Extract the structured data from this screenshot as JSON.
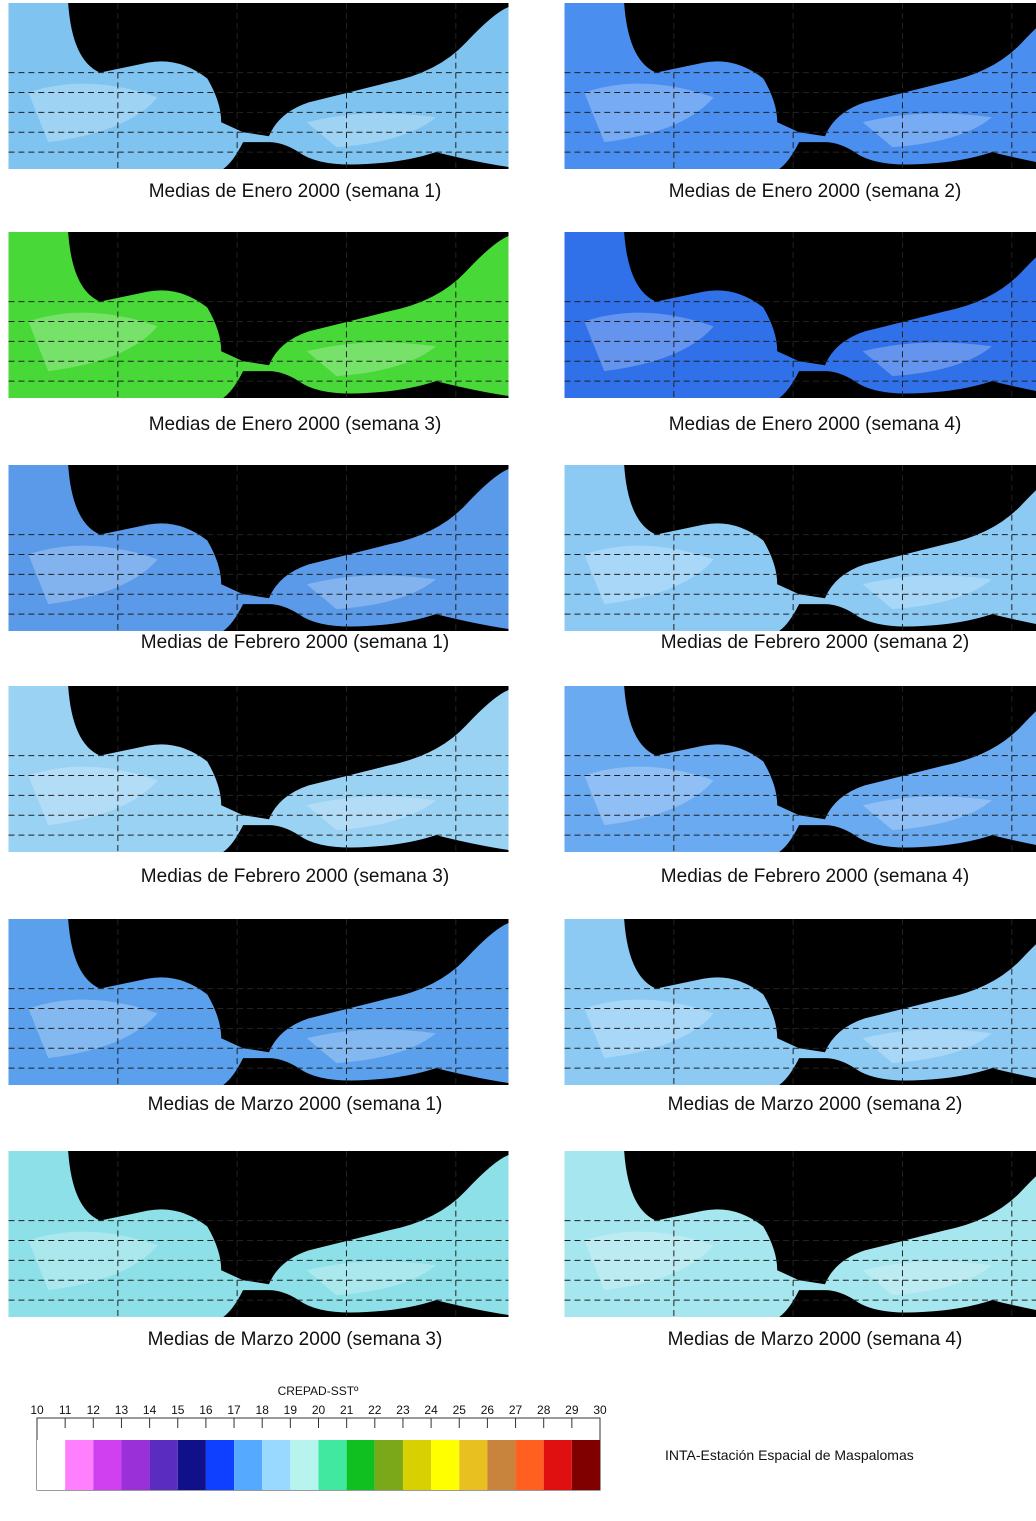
{
  "captions": [
    "Medias de Enero 2000 (semana 1)",
    "Medias de Enero 2000 (semana 2)",
    "Medias de Enero 2000 (semana 3)",
    "Medias de Enero 2000 (semana 4)",
    "Medias de Febrero 2000 (semana 1)",
    "Medias de Febrero 2000 (semana 2)",
    "Medias de Febrero 2000 (semana 3)",
    "Medias de Febrero 2000 (semana 4)",
    "Medias de Marzo 2000 (semana 1)",
    "Medias de Marzo 2000 (semana 2)",
    "Medias de Marzo 2000 (semana 3)",
    "Medias de Marzo 2000 (semana 4)"
  ],
  "legend": {
    "title": "CREPAD-SSTº",
    "ticks": [
      10,
      11,
      12,
      13,
      14,
      15,
      16,
      17,
      18,
      19,
      20,
      21,
      22,
      23,
      24,
      25,
      26,
      27,
      28,
      29,
      30
    ],
    "colors": [
      "#ffffff",
      "#ff7fff",
      "#d040f0",
      "#9a30d8",
      "#5a2cc0",
      "#10108a",
      "#1040ff",
      "#55aaff",
      "#99d8ff",
      "#b8f4ee",
      "#40e8a0",
      "#10c020",
      "#7aa818",
      "#d8d000",
      "#ffff00",
      "#e8c020",
      "#c8843c",
      "#ff6020",
      "#e01010",
      "#800000"
    ]
  },
  "footer": "INTA-Estación Espacial de Maspalomas"
}
